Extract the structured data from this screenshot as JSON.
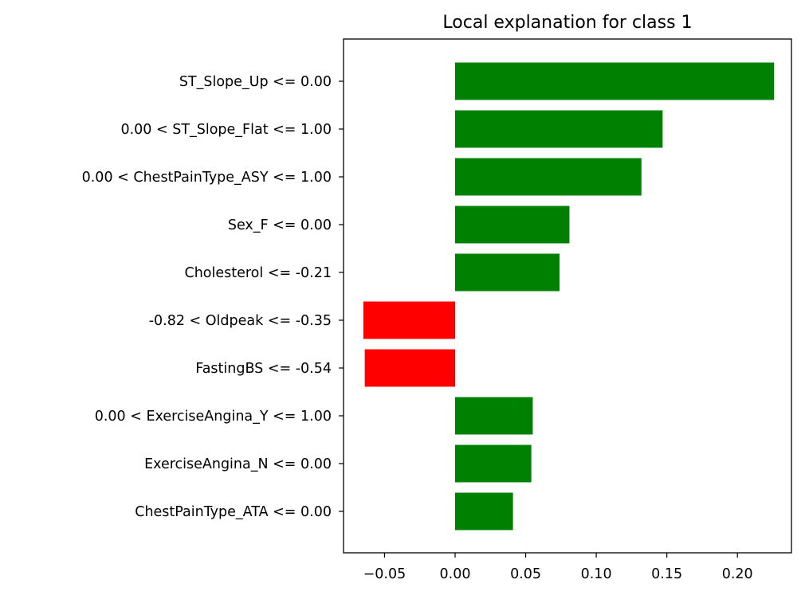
{
  "chart_data": {
    "type": "bar",
    "orientation": "horizontal",
    "title": "Local explanation for class 1",
    "xlabel": "",
    "ylabel": "",
    "categories": [
      "ST_Slope_Up <= 0.00",
      "0.00 < ST_Slope_Flat <= 1.00",
      "0.00 < ChestPainType_ASY <= 1.00",
      "Sex_F <= 0.00",
      "Cholesterol <= -0.21",
      "-0.82 < Oldpeak <= -0.35",
      "FastingBS <= -0.54",
      "0.00 < ExerciseAngina_Y <= 1.00",
      "ExerciseAngina_N <= 0.00",
      "ChestPainType_ATA <= 0.00"
    ],
    "values": [
      0.226,
      0.147,
      0.132,
      0.081,
      0.074,
      -0.065,
      -0.064,
      0.055,
      0.054,
      0.041
    ],
    "xlim": [
      -0.08,
      0.24
    ],
    "xticks": [
      -0.05,
      0.0,
      0.05,
      0.1,
      0.15,
      0.2
    ],
    "xtick_labels": [
      "−0.05",
      "0.00",
      "0.05",
      "0.10",
      "0.15",
      "0.20"
    ],
    "grid": false,
    "colors": {
      "positive": "#008000",
      "negative": "#ff0000",
      "frame": "#000000"
    }
  }
}
